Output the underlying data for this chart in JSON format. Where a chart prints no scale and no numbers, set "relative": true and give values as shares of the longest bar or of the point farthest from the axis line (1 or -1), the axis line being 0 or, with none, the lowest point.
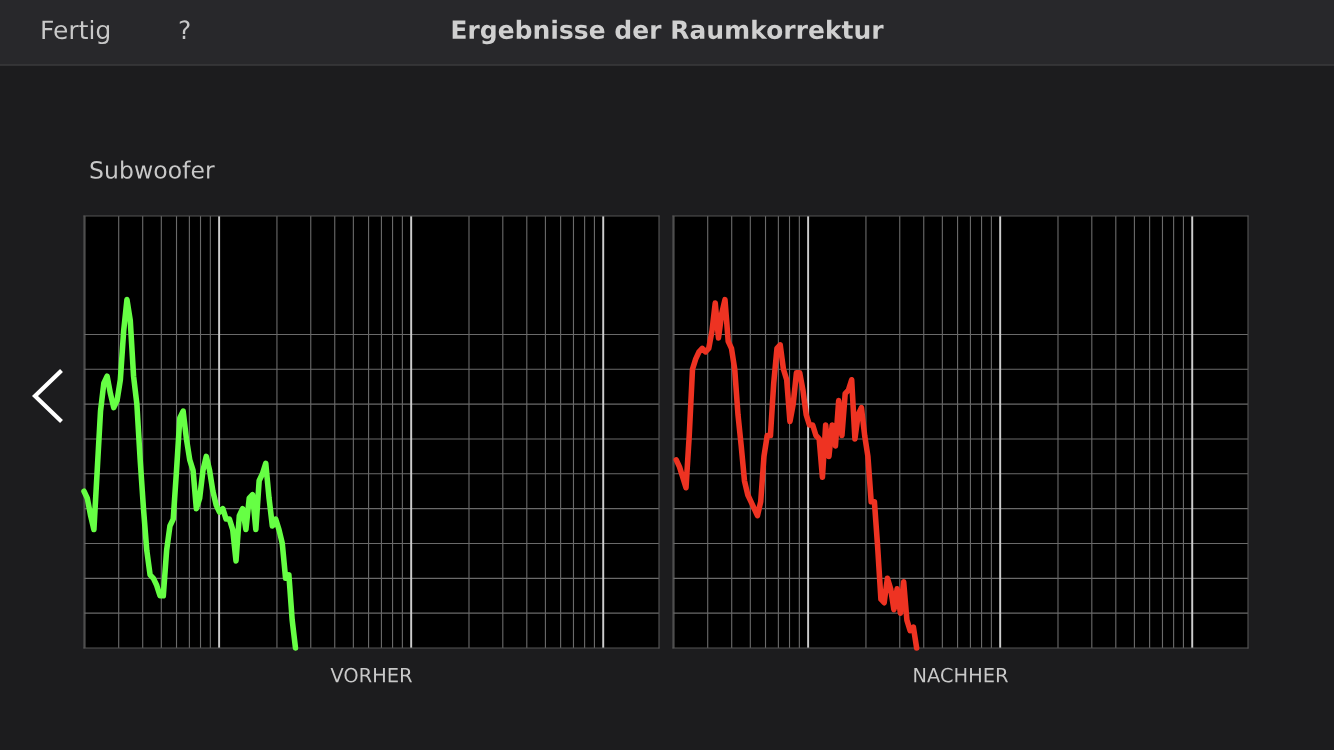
{
  "chart_data": [
    {
      "type": "line",
      "title": "Ergebnisse der Raumkorrektur",
      "subtitle": "Subwoofer",
      "annotations": [
        "Fertig",
        "?"
      ],
      "xlabel": "VORHER",
      "relative": true,
      "grid": true,
      "categories": [
        null,
        null,
        null,
        null,
        null,
        null,
        null,
        null,
        null,
        null,
        null,
        null,
        null,
        null,
        null,
        null,
        null,
        null,
        null,
        null,
        null,
        null,
        null,
        null,
        null,
        null,
        null,
        null,
        null,
        null,
        null,
        null,
        null,
        null,
        null,
        null,
        null,
        null,
        null,
        null,
        null,
        null,
        null,
        null,
        null,
        null,
        null,
        null,
        null,
        null,
        null,
        null,
        null,
        null,
        null,
        null,
        null,
        null,
        null,
        null,
        null,
        null,
        null,
        null,
        null,
        null,
        null,
        null,
        null,
        null,
        null,
        null,
        null,
        null,
        null,
        null,
        null,
        null,
        null,
        null,
        null,
        null,
        null,
        null,
        null,
        null,
        null,
        null,
        null,
        null,
        null,
        null,
        null,
        null,
        null,
        null,
        null,
        null,
        null,
        null,
        null,
        null,
        null,
        null,
        null,
        null,
        null,
        null,
        null,
        null,
        null,
        null,
        null,
        null,
        null,
        null,
        null,
        null,
        null,
        null,
        null,
        null,
        null,
        null,
        null,
        null,
        null,
        null,
        null,
        null,
        null,
        null,
        null,
        null,
        null,
        null,
        null,
        null,
        null,
        null,
        null,
        null,
        null,
        null,
        null,
        null,
        null,
        null,
        null,
        null,
        null,
        null,
        null,
        null,
        null,
        null,
        null,
        null,
        null,
        null,
        null,
        null,
        null,
        null,
        null,
        null,
        null,
        null,
        null,
        null,
        null,
        null,
        null,
        null,
        null
      ],
      "series": [
        {
          "color": "#66ff44",
          "values": [
            0.45,
            0.43,
            0.38,
            0.34,
            0.51,
            0.68,
            0.76,
            0.78,
            0.73,
            0.69,
            0.71,
            0.77,
            0.91,
            1,
            0.94,
            0.78,
            0.7,
            0.54,
            0.4,
            0.28,
            0.21,
            0.2,
            0.18,
            0.15,
            0.15,
            0.28,
            0.35,
            0.37,
            0.51,
            0.66,
            0.68,
            0.6,
            0.54,
            0.51,
            0.4,
            0.43,
            0.51,
            0.55,
            0.51,
            0.45,
            0.41,
            0.39,
            0.4,
            0.37,
            0.37,
            0.34,
            0.25,
            0.38,
            0.4,
            0.34,
            0.43,
            0.44,
            0.34,
            0.48,
            0.5,
            0.53,
            0.43,
            0.35,
            0.37,
            0.34,
            0.3,
            0.2,
            0.21,
            0.08,
            0,
            null,
            null,
            null,
            null,
            null,
            null,
            null,
            null,
            null,
            null,
            null,
            null,
            null,
            null,
            null,
            null,
            null,
            null,
            null,
            null,
            null,
            null,
            null,
            null,
            null,
            null,
            null,
            null,
            null,
            null,
            null,
            null,
            null,
            null,
            null,
            null,
            null,
            null,
            null,
            null,
            null,
            null,
            null,
            null,
            null,
            null,
            null,
            null,
            null,
            null,
            null,
            null,
            null,
            null,
            null,
            null,
            null,
            null,
            null,
            null,
            null,
            null,
            null,
            null,
            null,
            null,
            null,
            null,
            null,
            null,
            null,
            null,
            null,
            null,
            null,
            null,
            null,
            null,
            null,
            null,
            null,
            null,
            null,
            null,
            null,
            null,
            null,
            null,
            null,
            null,
            null,
            null,
            null,
            null,
            null,
            null,
            null,
            null,
            null,
            null,
            null,
            null,
            null,
            null,
            null,
            null,
            null,
            null,
            null,
            null
          ]
        }
      ]
    },
    {
      "type": "line",
      "xlabel": "NACHHER",
      "relative": true,
      "grid": true,
      "categories": [
        null,
        null,
        null,
        null,
        null,
        null,
        null,
        null,
        null,
        null,
        null,
        null,
        null,
        null,
        null,
        null,
        null,
        null,
        null,
        null,
        null,
        null,
        null,
        null,
        null,
        null,
        null,
        null,
        null,
        null,
        null,
        null,
        null,
        null,
        null,
        null,
        null,
        null,
        null,
        null,
        null,
        null,
        null,
        null,
        null,
        null,
        null,
        null,
        null,
        null,
        null,
        null,
        null,
        null,
        null,
        null,
        null,
        null,
        null,
        null,
        null,
        null,
        null,
        null,
        null,
        null,
        null,
        null,
        null,
        null,
        null,
        null,
        null,
        null,
        null,
        null,
        null,
        null,
        null,
        null,
        null,
        null,
        null,
        null,
        null,
        null,
        null,
        null,
        null,
        null,
        null,
        null,
        null,
        null,
        null,
        null,
        null,
        null,
        null,
        null,
        null,
        null,
        null,
        null,
        null,
        null,
        null,
        null,
        null,
        null,
        null,
        null,
        null,
        null,
        null,
        null,
        null,
        null,
        null,
        null,
        null,
        null,
        null,
        null,
        null,
        null,
        null,
        null,
        null,
        null,
        null,
        null,
        null,
        null,
        null,
        null,
        null,
        null,
        null,
        null,
        null,
        null,
        null,
        null,
        null,
        null,
        null,
        null,
        null,
        null,
        null,
        null,
        null,
        null,
        null,
        null,
        null,
        null,
        null,
        null,
        null,
        null,
        null,
        null,
        null,
        null,
        null,
        null,
        null,
        null,
        null,
        null,
        null,
        null,
        null,
        null,
        null,
        null
      ],
      "series": [
        {
          "color": "#ee3322",
          "values": [
            null,
            0.54,
            0.52,
            0.49,
            0.46,
            0.61,
            0.8,
            0.83,
            0.85,
            0.86,
            0.85,
            0.86,
            0.91,
            0.99,
            0.89,
            0.96,
            1,
            0.88,
            0.86,
            0.8,
            0.67,
            0.58,
            0.48,
            0.44,
            0.42,
            0.4,
            0.38,
            0.42,
            0.55,
            0.61,
            0.61,
            0.76,
            0.86,
            0.87,
            0.8,
            0.77,
            0.65,
            0.7,
            0.79,
            0.79,
            0.74,
            0.67,
            0.64,
            0.64,
            0.61,
            0.6,
            0.49,
            0.64,
            0.55,
            0.64,
            0.58,
            0.71,
            0.61,
            0.73,
            0.74,
            0.77,
            0.6,
            0.67,
            0.69,
            0.61,
            0.55,
            0.42,
            0.42,
            0.29,
            0.14,
            0.13,
            0.2,
            0.17,
            0.11,
            0.17,
            0.1,
            0.19,
            0.08,
            0.05,
            0.06,
            0,
            null,
            null,
            null,
            null,
            null,
            null,
            null,
            null,
            null,
            null,
            null,
            null,
            null,
            null,
            null,
            null,
            null,
            null,
            null,
            null,
            null,
            null,
            null,
            null,
            null,
            null,
            null,
            null,
            null,
            null,
            null,
            null,
            null,
            null,
            null,
            null,
            null,
            null,
            null,
            null,
            null,
            null,
            null,
            null,
            null,
            null,
            null,
            null,
            null,
            null,
            null,
            null,
            null,
            null,
            null,
            null,
            null,
            null,
            null,
            null,
            null,
            null,
            null,
            null,
            null,
            null,
            null,
            null,
            null,
            null,
            null,
            null,
            null,
            null,
            null,
            null,
            null,
            null,
            null,
            null,
            null,
            null,
            null,
            null,
            null,
            null,
            null,
            null,
            null,
            null,
            null,
            null,
            null,
            null,
            null,
            null,
            null,
            null,
            null,
            null,
            null,
            null
          ]
        }
      ]
    }
  ]
}
